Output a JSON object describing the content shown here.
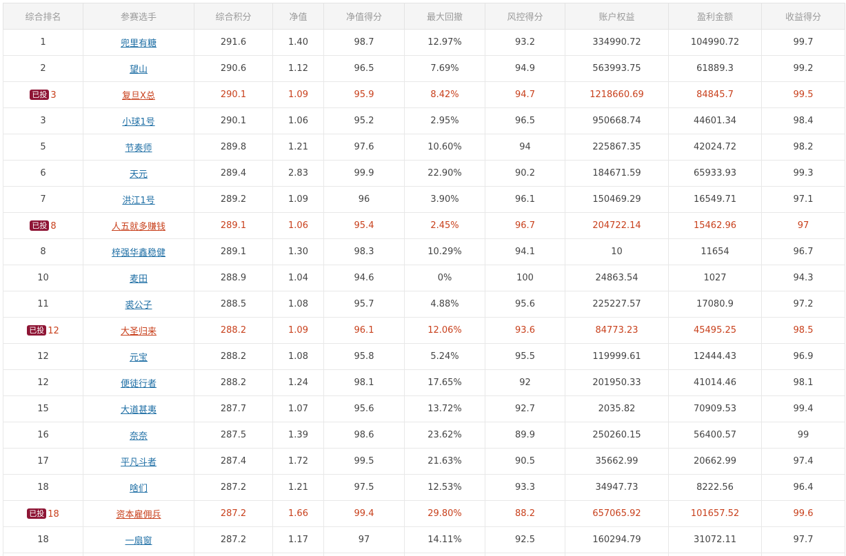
{
  "headers": [
    "综合排名",
    "参赛选手",
    "综合积分",
    "净值",
    "净值得分",
    "最大回撤",
    "风控得分",
    "账户权益",
    "盈利金额",
    "收益得分"
  ],
  "badge_label": "已投",
  "rows": [
    {
      "rank": "1",
      "badge": "",
      "player": "兜里有糖",
      "score": "291.6",
      "nav": "1.40",
      "nav_score": "98.7",
      "max_drawdown": "12.97%",
      "risk_score": "93.2",
      "equity": "334990.72",
      "profit": "104990.72",
      "return_score": "99.7"
    },
    {
      "rank": "2",
      "badge": "",
      "player": "望山",
      "score": "290.6",
      "nav": "1.12",
      "nav_score": "96.5",
      "max_drawdown": "7.69%",
      "risk_score": "94.9",
      "equity": "563993.75",
      "profit": "61889.3",
      "return_score": "99.2"
    },
    {
      "rank": "3",
      "badge": "已投",
      "player": "复旦X总",
      "score": "290.1",
      "nav": "1.09",
      "nav_score": "95.9",
      "max_drawdown": "8.42%",
      "risk_score": "94.7",
      "equity": "1218660.69",
      "profit": "84845.7",
      "return_score": "99.5"
    },
    {
      "rank": "3",
      "badge": "",
      "player": "小球1号",
      "score": "290.1",
      "nav": "1.06",
      "nav_score": "95.2",
      "max_drawdown": "2.95%",
      "risk_score": "96.5",
      "equity": "950668.74",
      "profit": "44601.34",
      "return_score": "98.4"
    },
    {
      "rank": "5",
      "badge": "",
      "player": "节奏师",
      "score": "289.8",
      "nav": "1.21",
      "nav_score": "97.6",
      "max_drawdown": "10.60%",
      "risk_score": "94",
      "equity": "225867.35",
      "profit": "42024.72",
      "return_score": "98.2"
    },
    {
      "rank": "6",
      "badge": "",
      "player": "天元",
      "score": "289.4",
      "nav": "2.83",
      "nav_score": "99.9",
      "max_drawdown": "22.90%",
      "risk_score": "90.2",
      "equity": "184671.59",
      "profit": "65933.93",
      "return_score": "99.3"
    },
    {
      "rank": "7",
      "badge": "",
      "player": "洪江1号",
      "score": "289.2",
      "nav": "1.09",
      "nav_score": "96",
      "max_drawdown": "3.90%",
      "risk_score": "96.1",
      "equity": "150469.29",
      "profit": "16549.71",
      "return_score": "97.1"
    },
    {
      "rank": "8",
      "badge": "已投",
      "player": "人五就多赚钱",
      "score": "289.1",
      "nav": "1.06",
      "nav_score": "95.4",
      "max_drawdown": "2.45%",
      "risk_score": "96.7",
      "equity": "204722.14",
      "profit": "15462.96",
      "return_score": "97"
    },
    {
      "rank": "8",
      "badge": "",
      "player": "梓强华鑫稳健",
      "score": "289.1",
      "nav": "1.30",
      "nav_score": "98.3",
      "max_drawdown": "10.29%",
      "risk_score": "94.1",
      "equity": "10",
      "profit": "11654",
      "return_score": "96.7"
    },
    {
      "rank": "10",
      "badge": "",
      "player": "麦田",
      "score": "288.9",
      "nav": "1.04",
      "nav_score": "94.6",
      "max_drawdown": "0%",
      "risk_score": "100",
      "equity": "24863.54",
      "profit": "1027",
      "return_score": "94.3"
    },
    {
      "rank": "11",
      "badge": "",
      "player": "裘公子",
      "score": "288.5",
      "nav": "1.08",
      "nav_score": "95.7",
      "max_drawdown": "4.88%",
      "risk_score": "95.6",
      "equity": "225227.57",
      "profit": "17080.9",
      "return_score": "97.2"
    },
    {
      "rank": "12",
      "badge": "已投",
      "player": "大圣归来",
      "score": "288.2",
      "nav": "1.09",
      "nav_score": "96.1",
      "max_drawdown": "12.06%",
      "risk_score": "93.6",
      "equity": "84773.23",
      "profit": "45495.25",
      "return_score": "98.5"
    },
    {
      "rank": "12",
      "badge": "",
      "player": "元宝",
      "score": "288.2",
      "nav": "1.08",
      "nav_score": "95.8",
      "max_drawdown": "5.24%",
      "risk_score": "95.5",
      "equity": "119999.61",
      "profit": "12444.43",
      "return_score": "96.9"
    },
    {
      "rank": "12",
      "badge": "",
      "player": "便徒行者",
      "score": "288.2",
      "nav": "1.24",
      "nav_score": "98.1",
      "max_drawdown": "17.65%",
      "risk_score": "92",
      "equity": "201950.33",
      "profit": "41014.46",
      "return_score": "98.1"
    },
    {
      "rank": "15",
      "badge": "",
      "player": "大道甚夷",
      "score": "287.7",
      "nav": "1.07",
      "nav_score": "95.6",
      "max_drawdown": "13.72%",
      "risk_score": "92.7",
      "equity": "2035.82",
      "profit": "70909.53",
      "return_score": "99.4"
    },
    {
      "rank": "16",
      "badge": "",
      "player": "奈奈",
      "score": "287.5",
      "nav": "1.39",
      "nav_score": "98.6",
      "max_drawdown": "23.62%",
      "risk_score": "89.9",
      "equity": "250260.15",
      "profit": "56400.57",
      "return_score": "99"
    },
    {
      "rank": "17",
      "badge": "",
      "player": "平凡斗者",
      "score": "287.4",
      "nav": "1.72",
      "nav_score": "99.5",
      "max_drawdown": "21.63%",
      "risk_score": "90.5",
      "equity": "35662.99",
      "profit": "20662.99",
      "return_score": "97.4"
    },
    {
      "rank": "18",
      "badge": "",
      "player": "啥们",
      "score": "287.2",
      "nav": "1.21",
      "nav_score": "97.5",
      "max_drawdown": "12.53%",
      "risk_score": "93.3",
      "equity": "34947.73",
      "profit": "8222.56",
      "return_score": "96.4"
    },
    {
      "rank": "18",
      "badge": "已投",
      "player": "资本雇佣兵",
      "score": "287.2",
      "nav": "1.66",
      "nav_score": "99.4",
      "max_drawdown": "29.80%",
      "risk_score": "88.2",
      "equity": "657065.92",
      "profit": "101657.52",
      "return_score": "99.6"
    },
    {
      "rank": "18",
      "badge": "",
      "player": "一扇窗",
      "score": "287.2",
      "nav": "1.17",
      "nav_score": "97",
      "max_drawdown": "14.11%",
      "risk_score": "92.5",
      "equity": "160294.79",
      "profit": "31072.11",
      "return_score": "97.7"
    },
    {
      "rank": "",
      "badge": "",
      "player": "",
      "score": "",
      "nav": "",
      "nav_score": "",
      "max_drawdown": "",
      "risk_score": "",
      "equity": "",
      "profit": "",
      "return_score": ""
    }
  ],
  "colors": {
    "header_bg": "#f5f5f5",
    "header_text": "#9b9b9b",
    "body_text": "#444444",
    "link": "#1f6fa5",
    "highlight_text": "#c8401c",
    "badge_bg": "#8e1535",
    "border": "#e8e8e8"
  }
}
